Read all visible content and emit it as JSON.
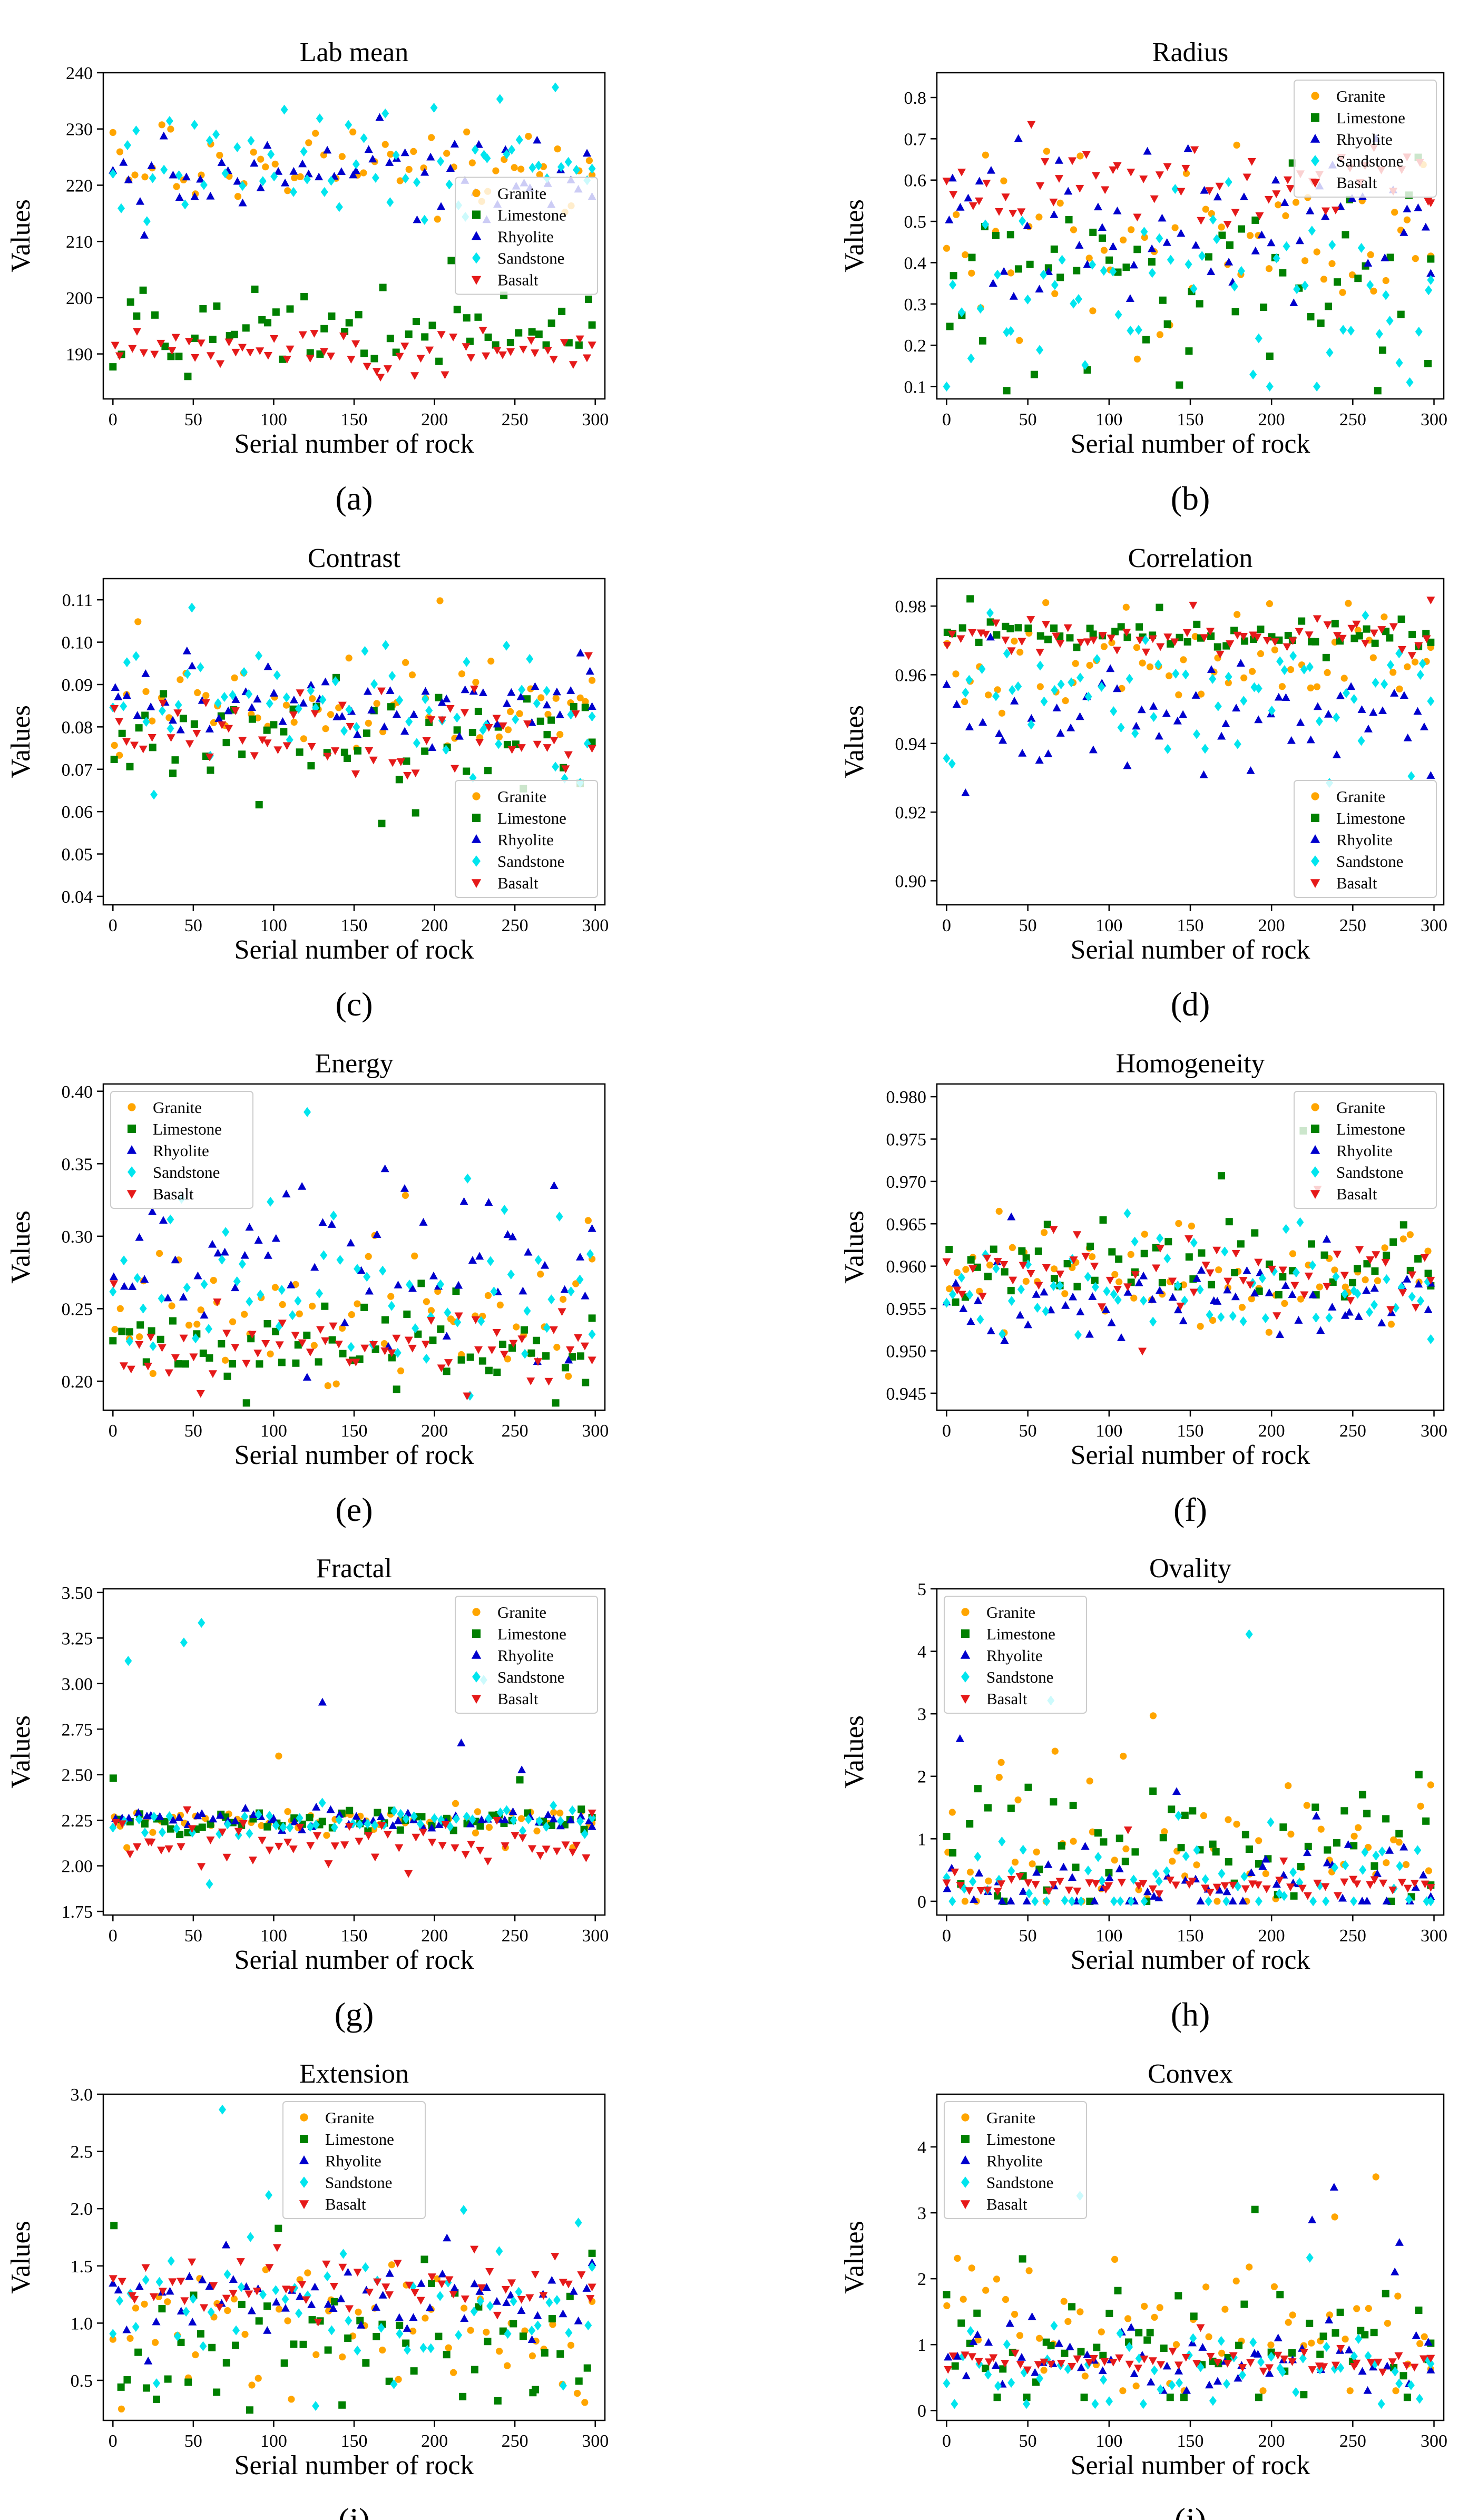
{
  "figure": {
    "colors": {
      "Granite": "#FFA500",
      "Limestone": "#008000",
      "Rhyolite": "#0000CD",
      "Sandstone": "#00E5EE",
      "Basalt": "#E51A1A"
    },
    "markers": {
      "Granite": "circle",
      "Limestone": "square",
      "Rhyolite": "triangle-up",
      "Sandstone": "diamond",
      "Basalt": "triangle-down"
    }
  },
  "chart_data": [
    {
      "id": "a",
      "letter": "(a)",
      "type": "scatter",
      "title": "Lab mean",
      "xlabel": "Serial number of rock",
      "ylabel": "Values",
      "xlim": [
        -6,
        306
      ],
      "ylim": [
        182,
        240
      ],
      "xticks": [
        0,
        50,
        100,
        150,
        200,
        250,
        300
      ],
      "xtick_labels": [
        "0",
        "50",
        "100",
        "150",
        "200",
        "250",
        "300"
      ],
      "yticks": [
        190,
        200,
        210,
        220,
        230,
        240
      ],
      "ytick_labels": [
        "190",
        "200",
        "210",
        "220",
        "230",
        "240"
      ],
      "legend": [
        "Granite",
        "Limestone",
        "Rhyolite",
        "Sandstone",
        "Basalt"
      ],
      "legend_loc": "center-right",
      "series_profile": [
        {
          "name": "Granite",
          "center": 222,
          "spread": 5,
          "min": 206,
          "max": 232
        },
        {
          "name": "Limestone",
          "center": 194,
          "spread": 5,
          "min": 186,
          "max": 210
        },
        {
          "name": "Rhyolite",
          "center": 222,
          "spread": 4.5,
          "min": 208,
          "max": 232
        },
        {
          "name": "Sandstone",
          "center": 224,
          "spread": 6,
          "min": 206,
          "max": 238
        },
        {
          "name": "Basalt",
          "center": 190,
          "spread": 2.5,
          "min": 184,
          "max": 197
        }
      ]
    },
    {
      "id": "b",
      "letter": "(b)",
      "type": "scatter",
      "title": "Radius",
      "xlabel": "Serial number of rock",
      "ylabel": "Values",
      "xlim": [
        -6,
        306
      ],
      "ylim": [
        0.07,
        0.86
      ],
      "xticks": [
        0,
        50,
        100,
        150,
        200,
        250,
        300
      ],
      "xtick_labels": [
        "0",
        "50",
        "100",
        "150",
        "200",
        "250",
        "300"
      ],
      "yticks": [
        0.1,
        0.2,
        0.3,
        0.4,
        0.5,
        0.6,
        0.7,
        0.8
      ],
      "ytick_labels": [
        "0.1",
        "0.2",
        "0.3",
        "0.4",
        "0.5",
        "0.6",
        "0.7",
        "0.8"
      ],
      "legend": [
        "Granite",
        "Limestone",
        "Rhyolite",
        "Sandstone",
        "Basalt"
      ],
      "legend_loc": "top-right",
      "series_profile": [
        {
          "name": "Granite",
          "center": 0.47,
          "spread": 0.16,
          "min": 0.12,
          "max": 0.78
        },
        {
          "name": "Limestone",
          "center": 0.33,
          "spread": 0.17,
          "min": 0.09,
          "max": 0.74
        },
        {
          "name": "Rhyolite",
          "center": 0.5,
          "spread": 0.12,
          "min": 0.2,
          "max": 0.7
        },
        {
          "name": "Sandstone",
          "center": 0.32,
          "spread": 0.16,
          "min": 0.1,
          "max": 0.7
        },
        {
          "name": "Basalt",
          "center": 0.58,
          "spread": 0.07,
          "min": 0.42,
          "max": 0.84
        }
      ]
    },
    {
      "id": "c",
      "letter": "(c)",
      "type": "scatter",
      "title": "Contrast",
      "xlabel": "Serial number of rock",
      "ylabel": "Values",
      "xlim": [
        -6,
        306
      ],
      "ylim": [
        0.038,
        0.115
      ],
      "xticks": [
        0,
        50,
        100,
        150,
        200,
        250,
        300
      ],
      "xtick_labels": [
        "0",
        "50",
        "100",
        "150",
        "200",
        "250",
        "300"
      ],
      "yticks": [
        0.04,
        0.05,
        0.06,
        0.07,
        0.08,
        0.09,
        0.1,
        0.11
      ],
      "ytick_labels": [
        "0.04",
        "0.05",
        "0.06",
        "0.07",
        "0.08",
        "0.09",
        "0.10",
        "0.11"
      ],
      "legend": [
        "Granite",
        "Limestone",
        "Rhyolite",
        "Sandstone",
        "Basalt"
      ],
      "legend_loc": "bottom-right",
      "series_profile": [
        {
          "name": "Granite",
          "center": 0.084,
          "spread": 0.008,
          "min": 0.066,
          "max": 0.113
        },
        {
          "name": "Limestone",
          "center": 0.078,
          "spread": 0.009,
          "min": 0.043,
          "max": 0.103
        },
        {
          "name": "Rhyolite",
          "center": 0.085,
          "spread": 0.005,
          "min": 0.072,
          "max": 0.1
        },
        {
          "name": "Sandstone",
          "center": 0.084,
          "spread": 0.009,
          "min": 0.064,
          "max": 0.109
        },
        {
          "name": "Basalt",
          "center": 0.079,
          "spread": 0.006,
          "min": 0.057,
          "max": 0.1
        }
      ]
    },
    {
      "id": "d",
      "letter": "(d)",
      "type": "scatter",
      "title": "Correlation",
      "xlabel": "Serial number of rock",
      "ylabel": "Values",
      "xlim": [
        -6,
        306
      ],
      "ylim": [
        0.893,
        0.988
      ],
      "xticks": [
        0,
        50,
        100,
        150,
        200,
        250,
        300
      ],
      "xtick_labels": [
        "0",
        "50",
        "100",
        "150",
        "200",
        "250",
        "300"
      ],
      "yticks": [
        0.9,
        0.92,
        0.94,
        0.96,
        0.98
      ],
      "ytick_labels": [
        "0.90",
        "0.92",
        "0.94",
        "0.96",
        "0.98"
      ],
      "legend": [
        "Granite",
        "Limestone",
        "Rhyolite",
        "Sandstone",
        "Basalt"
      ],
      "legend_loc": "bottom-right",
      "series_profile": [
        {
          "name": "Granite",
          "center": 0.964,
          "spread": 0.01,
          "min": 0.9,
          "max": 0.981
        },
        {
          "name": "Limestone",
          "center": 0.971,
          "spread": 0.003,
          "min": 0.96,
          "max": 0.986
        },
        {
          "name": "Rhyolite",
          "center": 0.948,
          "spread": 0.01,
          "min": 0.921,
          "max": 0.975
        },
        {
          "name": "Sandstone",
          "center": 0.952,
          "spread": 0.013,
          "min": 0.895,
          "max": 0.978
        },
        {
          "name": "Basalt",
          "center": 0.971,
          "spread": 0.003,
          "min": 0.96,
          "max": 0.982
        }
      ]
    },
    {
      "id": "e",
      "letter": "(e)",
      "type": "scatter",
      "title": "Energy",
      "xlabel": "Serial number of rock",
      "ylabel": "Values",
      "xlim": [
        -6,
        306
      ],
      "ylim": [
        0.18,
        0.405
      ],
      "xticks": [
        0,
        50,
        100,
        150,
        200,
        250,
        300
      ],
      "xtick_labels": [
        "0",
        "50",
        "100",
        "150",
        "200",
        "250",
        "300"
      ],
      "yticks": [
        0.2,
        0.25,
        0.3,
        0.35,
        0.4
      ],
      "ytick_labels": [
        "0.20",
        "0.25",
        "0.30",
        "0.35",
        "0.40"
      ],
      "legend": [
        "Granite",
        "Limestone",
        "Rhyolite",
        "Sandstone",
        "Basalt"
      ],
      "legend_loc": "top-left",
      "series_profile": [
        {
          "name": "Granite",
          "center": 0.245,
          "spread": 0.03,
          "min": 0.19,
          "max": 0.35
        },
        {
          "name": "Limestone",
          "center": 0.225,
          "spread": 0.022,
          "min": 0.185,
          "max": 0.36
        },
        {
          "name": "Rhyolite",
          "center": 0.28,
          "spread": 0.035,
          "min": 0.2,
          "max": 0.37
        },
        {
          "name": "Sandstone",
          "center": 0.26,
          "spread": 0.035,
          "min": 0.19,
          "max": 0.4
        },
        {
          "name": "Basalt",
          "center": 0.225,
          "spread": 0.015,
          "min": 0.19,
          "max": 0.27
        }
      ]
    },
    {
      "id": "f",
      "letter": "(f)",
      "type": "scatter",
      "title": "Homogeneity",
      "xlabel": "Serial number of rock",
      "ylabel": "Values",
      "xlim": [
        -6,
        306
      ],
      "ylim": [
        0.943,
        0.9815
      ],
      "xticks": [
        0,
        50,
        100,
        150,
        200,
        250,
        300
      ],
      "xtick_labels": [
        "0",
        "50",
        "100",
        "150",
        "200",
        "250",
        "300"
      ],
      "yticks": [
        0.945,
        0.95,
        0.955,
        0.96,
        0.965,
        0.97,
        0.975,
        0.98
      ],
      "ytick_labels": [
        "0.945",
        "0.950",
        "0.955",
        "0.960",
        "0.965",
        "0.970",
        "0.975",
        "0.980"
      ],
      "legend": [
        "Granite",
        "Limestone",
        "Rhyolite",
        "Sandstone",
        "Basalt"
      ],
      "legend_loc": "top-right",
      "series_profile": [
        {
          "name": "Granite",
          "center": 0.958,
          "spread": 0.004,
          "min": 0.9435,
          "max": 0.968
        },
        {
          "name": "Limestone",
          "center": 0.96,
          "spread": 0.003,
          "min": 0.952,
          "max": 0.978
        },
        {
          "name": "Rhyolite",
          "center": 0.956,
          "spread": 0.003,
          "min": 0.948,
          "max": 0.967
        },
        {
          "name": "Sandstone",
          "center": 0.957,
          "spread": 0.004,
          "min": 0.946,
          "max": 0.967
        },
        {
          "name": "Basalt",
          "center": 0.959,
          "spread": 0.003,
          "min": 0.95,
          "max": 0.971
        }
      ]
    },
    {
      "id": "g",
      "letter": "(g)",
      "type": "scatter",
      "title": "Fractal",
      "xlabel": "Serial number of rock",
      "ylabel": "Values",
      "xlim": [
        -6,
        306
      ],
      "ylim": [
        1.73,
        3.52
      ],
      "xticks": [
        0,
        50,
        100,
        150,
        200,
        250,
        300
      ],
      "xtick_labels": [
        "0",
        "50",
        "100",
        "150",
        "200",
        "250",
        "300"
      ],
      "yticks": [
        1.75,
        2.0,
        2.25,
        2.5,
        2.75,
        3.0,
        3.25,
        3.5
      ],
      "ytick_labels": [
        "1.75",
        "2.00",
        "2.25",
        "2.50",
        "2.75",
        "3.00",
        "3.25",
        "3.50"
      ],
      "legend": [
        "Granite",
        "Limestone",
        "Rhyolite",
        "Sandstone",
        "Basalt"
      ],
      "legend_loc": "top-right",
      "series_profile": [
        {
          "name": "Granite",
          "center": 2.25,
          "spread": 0.05,
          "min": 2.1,
          "max": 2.96
        },
        {
          "name": "Limestone",
          "center": 2.24,
          "spread": 0.04,
          "min": 2.0,
          "max": 2.52
        },
        {
          "name": "Rhyolite",
          "center": 2.25,
          "spread": 0.04,
          "min": 1.86,
          "max": 2.91
        },
        {
          "name": "Sandstone",
          "center": 2.24,
          "spread": 0.05,
          "min": 1.9,
          "max": 3.47
        },
        {
          "name": "Basalt",
          "center": 2.14,
          "spread": 0.09,
          "min": 1.8,
          "max": 2.75
        }
      ]
    },
    {
      "id": "h",
      "letter": "(h)",
      "type": "scatter",
      "title": "Ovality",
      "xlabel": "Serial number of rock",
      "ylabel": "Values",
      "xlim": [
        -6,
        306
      ],
      "ylim": [
        -0.22,
        5.0
      ],
      "xticks": [
        0,
        50,
        100,
        150,
        200,
        250,
        300
      ],
      "xtick_labels": [
        "0",
        "50",
        "100",
        "150",
        "200",
        "250",
        "300"
      ],
      "yticks": [
        0,
        1,
        2,
        3,
        4,
        5
      ],
      "ytick_labels": [
        "0",
        "1",
        "2",
        "3",
        "4",
        "5"
      ],
      "legend": [
        "Granite",
        "Limestone",
        "Rhyolite",
        "Sandstone",
        "Basalt"
      ],
      "legend_loc": "top-left",
      "series_profile": [
        {
          "name": "Granite",
          "center": 1.0,
          "spread": 0.9,
          "min": 0.0,
          "max": 4.1
        },
        {
          "name": "Limestone",
          "center": 0.8,
          "spread": 0.8,
          "min": 0.0,
          "max": 3.2
        },
        {
          "name": "Rhyolite",
          "center": 0.25,
          "spread": 0.5,
          "min": 0.0,
          "max": 4.0
        },
        {
          "name": "Sandstone",
          "center": 0.2,
          "spread": 0.6,
          "min": 0.0,
          "max": 4.8
        },
        {
          "name": "Basalt",
          "center": 0.25,
          "spread": 0.1,
          "min": 0.05,
          "max": 1.4
        }
      ]
    },
    {
      "id": "i",
      "letter": "(i)",
      "type": "scatter",
      "title": "Extension",
      "xlabel": "Serial number of rock",
      "ylabel": "Values",
      "xlim": [
        -6,
        306
      ],
      "ylim": [
        0.15,
        3.0
      ],
      "xticks": [
        0,
        50,
        100,
        150,
        200,
        250,
        300
      ],
      "xtick_labels": [
        "0",
        "50",
        "100",
        "150",
        "200",
        "250",
        "300"
      ],
      "yticks": [
        0.5,
        1.0,
        1.5,
        2.0,
        2.5,
        3.0
      ],
      "ytick_labels": [
        "0.5",
        "1.0",
        "1.5",
        "2.0",
        "2.5",
        "3.0"
      ],
      "legend": [
        "Granite",
        "Limestone",
        "Rhyolite",
        "Sandstone",
        "Basalt"
      ],
      "legend_loc": "top-center",
      "series_profile": [
        {
          "name": "Granite",
          "center": 1.0,
          "spread": 0.45,
          "min": 0.25,
          "max": 2.0
        },
        {
          "name": "Limestone",
          "center": 0.8,
          "spread": 0.45,
          "min": 0.2,
          "max": 2.8
        },
        {
          "name": "Rhyolite",
          "center": 1.2,
          "spread": 0.22,
          "min": 0.4,
          "max": 1.8
        },
        {
          "name": "Sandstone",
          "center": 1.15,
          "spread": 0.4,
          "min": 0.25,
          "max": 2.9
        },
        {
          "name": "Basalt",
          "center": 1.3,
          "spread": 0.15,
          "min": 0.9,
          "max": 1.8
        }
      ]
    },
    {
      "id": "j",
      "letter": "(j)",
      "type": "scatter",
      "title": "Convex",
      "xlabel": "Serial number of rock",
      "ylabel": "Values",
      "xlim": [
        -6,
        306
      ],
      "ylim": [
        -0.15,
        4.8
      ],
      "xticks": [
        0,
        50,
        100,
        150,
        200,
        250,
        300
      ],
      "xtick_labels": [
        "0",
        "50",
        "100",
        "150",
        "200",
        "250",
        "300"
      ],
      "yticks": [
        0,
        1,
        2,
        3,
        4
      ],
      "ytick_labels": [
        "0",
        "1",
        "2",
        "3",
        "4"
      ],
      "legend": [
        "Granite",
        "Limestone",
        "Rhyolite",
        "Sandstone",
        "Basalt"
      ],
      "legend_loc": "top-left",
      "series_profile": [
        {
          "name": "Granite",
          "center": 1.2,
          "spread": 0.8,
          "min": 0.3,
          "max": 3.6
        },
        {
          "name": "Limestone",
          "center": 0.9,
          "spread": 0.6,
          "min": 0.2,
          "max": 3.2
        },
        {
          "name": "Rhyolite",
          "center": 0.75,
          "spread": 0.4,
          "min": 0.3,
          "max": 3.5
        },
        {
          "name": "Sandstone",
          "center": 0.6,
          "spread": 0.4,
          "min": 0.1,
          "max": 4.6
        },
        {
          "name": "Basalt",
          "center": 0.72,
          "spread": 0.1,
          "min": 0.45,
          "max": 1.3
        }
      ]
    }
  ]
}
